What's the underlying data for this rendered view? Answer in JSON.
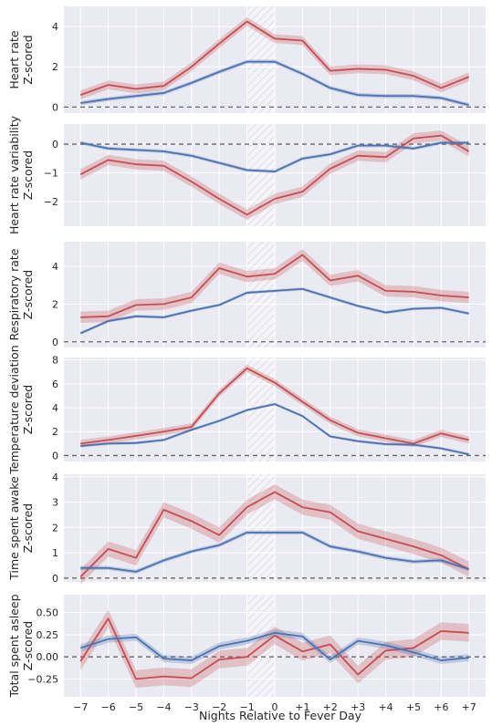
{
  "chart_data": {
    "type": "line",
    "xlabel": "Nights Relative to Fever Day",
    "x": [
      -7,
      -6,
      -5,
      -4,
      -3,
      -2,
      -1,
      0,
      1,
      2,
      3,
      4,
      5,
      6,
      7
    ],
    "x_tick_labels": [
      "−7",
      "−6",
      "−5",
      "−4",
      "−3",
      "−2",
      "−1",
      "0",
      "+1",
      "+2",
      "+3",
      "+4",
      "+5",
      "+6",
      "+7"
    ],
    "highlight_x": [
      -1,
      0
    ],
    "grid": true,
    "colors": {
      "red": "#c44e52",
      "blue": "#4c72b0",
      "panel_bg": "#eaeaf2",
      "hatch": "#d8d8e2"
    },
    "panels": [
      {
        "ylabel": [
          "Heart rate",
          "Z-scored"
        ],
        "ylim": [
          -0.3,
          5.0
        ],
        "yticks": [
          0,
          2,
          4
        ],
        "ytick_labels": [
          "0",
          "2",
          "4"
        ],
        "series": [
          {
            "color": "red",
            "values": [
              0.6,
              1.1,
              0.9,
              1.05,
              2.0,
              3.15,
              4.25,
              3.4,
              3.3,
              1.8,
              1.9,
              1.85,
              1.55,
              0.95,
              1.5
            ],
            "band": 0.22
          },
          {
            "color": "blue",
            "values": [
              0.2,
              0.4,
              0.55,
              0.7,
              1.2,
              1.75,
              2.25,
              2.25,
              1.65,
              0.95,
              0.6,
              0.55,
              0.55,
              0.45,
              0.1
            ],
            "band": 0.1
          }
        ]
      },
      {
        "ylabel": [
          "Heart rate variability",
          "Z-scored"
        ],
        "ylim": [
          -2.85,
          0.7
        ],
        "yticks": [
          -2,
          -1,
          0
        ],
        "ytick_labels": [
          "−2",
          "−1",
          "0"
        ],
        "series": [
          {
            "color": "red",
            "values": [
              -1.05,
              -0.55,
              -0.7,
              -0.75,
              -1.3,
              -1.9,
              -2.45,
              -1.9,
              -1.65,
              -0.85,
              -0.4,
              -0.45,
              0.2,
              0.3,
              -0.25
            ],
            "band": 0.18
          },
          {
            "color": "blue",
            "values": [
              0.05,
              -0.15,
              -0.2,
              -0.25,
              -0.4,
              -0.65,
              -0.9,
              -0.95,
              -0.5,
              -0.35,
              -0.05,
              -0.05,
              -0.15,
              0.05,
              0.05
            ],
            "band": 0.06
          }
        ]
      },
      {
        "ylabel": [
          "Respiratory rate",
          "Z-scored"
        ],
        "ylim": [
          -0.3,
          5.3
        ],
        "yticks": [
          0,
          2,
          4
        ],
        "ytick_labels": [
          "0",
          "2",
          "4"
        ],
        "series": [
          {
            "color": "red",
            "values": [
              1.3,
              1.35,
              1.95,
              2.0,
              2.35,
              3.9,
              3.45,
              3.6,
              4.6,
              3.25,
              3.5,
              2.7,
              2.65,
              2.45,
              2.35
            ],
            "band": 0.3
          },
          {
            "color": "blue",
            "values": [
              0.45,
              1.1,
              1.35,
              1.3,
              1.65,
              1.95,
              2.6,
              2.7,
              2.8,
              2.35,
              1.9,
              1.55,
              1.75,
              1.8,
              1.5
            ],
            "band": 0.08
          }
        ]
      },
      {
        "ylabel": [
          "Temperature deviation",
          "Z-scored"
        ],
        "ylim": [
          -0.5,
          8.2
        ],
        "yticks": [
          0,
          2,
          4,
          6,
          8
        ],
        "ytick_labels": [
          "0",
          "2",
          "4",
          "6",
          "8"
        ],
        "series": [
          {
            "color": "red",
            "values": [
              1.0,
              1.3,
              1.65,
              2.0,
              2.4,
              5.2,
              7.3,
              6.1,
              4.5,
              2.95,
              1.9,
              1.45,
              1.0,
              1.85,
              1.3
            ],
            "band": 0.3
          },
          {
            "color": "blue",
            "values": [
              0.8,
              1.0,
              1.05,
              1.3,
              2.15,
              2.9,
              3.8,
              4.3,
              3.3,
              1.6,
              1.2,
              0.95,
              0.9,
              0.6,
              0.1
            ],
            "band": 0.12
          }
        ]
      },
      {
        "ylabel": [
          "Time spent awake",
          "Z-scored"
        ],
        "ylim": [
          -0.15,
          4.1
        ],
        "yticks": [
          0,
          1,
          2,
          3,
          4
        ],
        "ytick_labels": [
          "0",
          "1",
          "2",
          "3",
          "4"
        ],
        "series": [
          {
            "color": "red",
            "values": [
              0.05,
              1.15,
              0.8,
              2.7,
              2.25,
              1.7,
              2.8,
              3.4,
              2.8,
              2.6,
              1.85,
              1.55,
              1.25,
              0.9,
              0.35
            ],
            "band": 0.3
          },
          {
            "color": "blue",
            "values": [
              0.4,
              0.4,
              0.25,
              0.7,
              1.05,
              1.3,
              1.8,
              1.8,
              1.8,
              1.25,
              1.05,
              0.8,
              0.65,
              0.7,
              0.35
            ],
            "band": 0.08
          }
        ]
      },
      {
        "ylabel": [
          "Total spent asleep",
          "Z-scored"
        ],
        "ylim": [
          -0.45,
          0.7
        ],
        "yticks": [
          -0.25,
          0,
          0.25,
          0.5
        ],
        "ytick_labels": [
          "−0.25",
          "0.00",
          "0.25",
          "0.50"
        ],
        "series": [
          {
            "color": "red",
            "values": [
              -0.05,
              0.43,
              -0.25,
              -0.22,
              -0.24,
              -0.03,
              0.0,
              0.24,
              0.06,
              0.14,
              -0.2,
              0.07,
              0.1,
              0.29,
              0.27
            ],
            "band": 0.1
          },
          {
            "color": "blue",
            "values": [
              0.1,
              0.2,
              0.22,
              -0.02,
              -0.04,
              0.12,
              0.18,
              0.27,
              0.23,
              -0.03,
              0.18,
              0.13,
              0.05,
              -0.04,
              -0.01
            ],
            "band": 0.04
          }
        ]
      }
    ]
  }
}
